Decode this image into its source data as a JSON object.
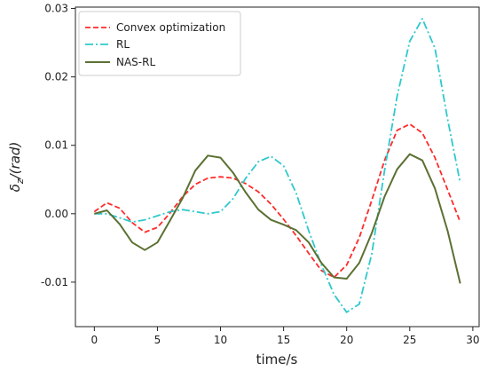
{
  "chart_data": {
    "type": "line",
    "xlabel": "time/s",
    "ylabel": "δz/(rad)",
    "ylabel_main": "δ",
    "ylabel_sub": "z",
    "ylabel_rest": "/(rad)",
    "xlim": [
      -1.5,
      30.5
    ],
    "ylim": [
      -0.0165,
      0.0302
    ],
    "xticks": [
      0,
      5,
      10,
      15,
      20,
      25,
      30
    ],
    "xtick_labels": [
      "0",
      "5",
      "10",
      "15",
      "20",
      "25",
      "30"
    ],
    "yticks": [
      -0.01,
      0.0,
      0.01,
      0.02,
      0.03
    ],
    "ytick_labels": [
      "-0.01",
      "0.00",
      "0.01",
      "0.02",
      "0.03"
    ],
    "grid": false,
    "legend_position": "top-left",
    "x": [
      0,
      1,
      2,
      3,
      4,
      5,
      6,
      7,
      8,
      9,
      10,
      11,
      12,
      13,
      14,
      15,
      16,
      17,
      18,
      19,
      20,
      21,
      22,
      23,
      24,
      25,
      26,
      27,
      28,
      29
    ],
    "series": [
      {
        "name": "Convex optimization",
        "color": "#ff2a2a",
        "style": "dashed",
        "values": [
          0.0003,
          0.0016,
          0.0008,
          -0.0013,
          -0.0027,
          -0.002,
          0.0001,
          0.0025,
          0.0043,
          0.0052,
          0.0054,
          0.0052,
          0.0044,
          0.0032,
          0.0014,
          -0.0008,
          -0.0032,
          -0.0058,
          -0.0083,
          -0.0093,
          -0.0075,
          -0.0035,
          0.002,
          0.0078,
          0.0122,
          0.0131,
          0.0118,
          0.0082,
          0.0035,
          -0.0012
        ]
      },
      {
        "name": "RL",
        "color": "#2ec9cc",
        "style": "dashdot",
        "values": [
          0.0,
          0.0,
          -0.0006,
          -0.0012,
          -0.0009,
          -0.0003,
          0.0003,
          0.0006,
          0.0003,
          0.0,
          0.0003,
          0.0022,
          0.0052,
          0.0076,
          0.0084,
          0.007,
          0.003,
          -0.0025,
          -0.0075,
          -0.0118,
          -0.0144,
          -0.0132,
          -0.0058,
          0.0063,
          0.0172,
          0.0252,
          0.0285,
          0.0242,
          0.0138,
          0.0045
        ]
      },
      {
        "name": "NAS-RL",
        "color": "#5b7133",
        "style": "solid",
        "values": [
          0.0,
          0.0005,
          -0.0015,
          -0.0042,
          -0.0053,
          -0.0042,
          -0.001,
          0.0023,
          0.0063,
          0.0085,
          0.0082,
          0.006,
          0.0031,
          0.0006,
          -0.0009,
          -0.0016,
          -0.0024,
          -0.0042,
          -0.0072,
          -0.0093,
          -0.0095,
          -0.0072,
          -0.0028,
          0.0025,
          0.0065,
          0.0087,
          0.0078,
          0.0037,
          -0.0025,
          -0.0102
        ]
      }
    ]
  }
}
